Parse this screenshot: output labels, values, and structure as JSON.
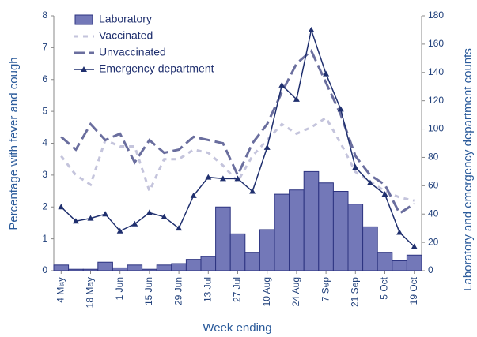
{
  "chart_data": {
    "type": "combo",
    "x_label": "Week ending",
    "y_label": "Percentage with fever and cough",
    "y2_label": "Laboratory and emergency department counts",
    "categories": [
      "4 May",
      null,
      "18 May",
      null,
      "1 Jun",
      null,
      "15 Jun",
      null,
      "29 Jun",
      null,
      "13 Jul",
      null,
      "27 Jul",
      null,
      "10 Aug",
      null,
      "24 Aug",
      null,
      "7 Sep",
      null,
      "21 Sep",
      null,
      "5 Oct",
      null,
      "19 Oct"
    ],
    "ylim": [
      0,
      8
    ],
    "yticks": [
      0,
      1,
      2,
      3,
      4,
      5,
      6,
      7,
      8
    ],
    "y2lim": [
      0,
      180
    ],
    "y2ticks": [
      0,
      20,
      40,
      60,
      80,
      100,
      120,
      140,
      160,
      180
    ],
    "series": [
      {
        "name": "Laboratory",
        "type": "bar",
        "axis": "y2",
        "color": "#7378b8",
        "values": [
          4,
          1,
          1,
          6,
          2,
          4,
          1,
          4,
          5,
          8,
          10,
          45,
          26,
          13,
          29,
          54,
          57,
          70,
          62,
          56,
          47,
          31,
          13,
          7,
          11
        ]
      },
      {
        "name": "Vaccinated",
        "type": "line",
        "axis": "y",
        "color": "#c4c4dc",
        "dash": "6 6",
        "values": [
          3.6,
          3.0,
          2.7,
          4.1,
          3.9,
          3.9,
          2.5,
          3.5,
          3.5,
          3.8,
          3.7,
          3.3,
          2.8,
          3.6,
          4.1,
          4.6,
          4.3,
          4.5,
          4.8,
          4.0,
          3.1,
          2.8,
          2.5,
          2.3,
          2.2
        ]
      },
      {
        "name": "Unvaccinated",
        "type": "line",
        "axis": "y",
        "color": "#6a6e9e",
        "dash": "14 6",
        "values": [
          4.2,
          3.8,
          4.6,
          4.1,
          4.3,
          3.4,
          4.1,
          3.7,
          3.8,
          4.2,
          4.1,
          4.0,
          3.0,
          4.0,
          4.6,
          5.6,
          6.5,
          6.9,
          5.9,
          4.9,
          3.6,
          3.0,
          2.7,
          1.8,
          2.1
        ]
      },
      {
        "name": "Emergency department",
        "type": "line",
        "axis": "y2",
        "color": "#1f2f6e",
        "marker": "triangle",
        "values": [
          45,
          35,
          37,
          40,
          28,
          33,
          41,
          38,
          30,
          53,
          66,
          65,
          65,
          56,
          87,
          131,
          121,
          170,
          139,
          114,
          73,
          62,
          54,
          27,
          17
        ]
      }
    ]
  }
}
